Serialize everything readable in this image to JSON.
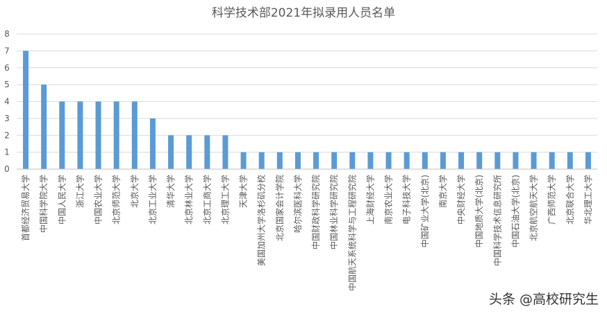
{
  "chart_data": {
    "type": "bar",
    "title": "科学技术部2021年拟录用人员名单",
    "xlabel": "",
    "ylabel": "",
    "ylim": [
      0,
      8
    ],
    "yticks": [
      0,
      1,
      2,
      3,
      4,
      5,
      6,
      7,
      8
    ],
    "grid": true,
    "legend": "none",
    "bar_color": "#5b9bd5",
    "categories": [
      "首都经济贸易大学",
      "中国科学院大学",
      "中国人民大学",
      "浙江大学",
      "中国农业大学",
      "北京师范大学",
      "北京大学",
      "北京工业大学",
      "清华大学",
      "北京林业大学",
      "北京工商大学",
      "北京理工大学",
      "天津大学",
      "美国加州大学洛杉矶分校",
      "北京国家会计学院",
      "哈尔滨医科大学",
      "中国财政科学研究院",
      "中国林业科学研究院",
      "中国航天系统科学与工程研究院",
      "上海财经大学",
      "南京农业大学",
      "电子科技大学",
      "中国矿业大学(北京)",
      "南京大学",
      "中央财经大学",
      "中国地质大学(北京)",
      "中国科学技术信息研究所",
      "中国石油大学(北京)",
      "北京航空航天大学",
      "广西师范大学",
      "北京联合大学",
      "华北理工大学"
    ],
    "values": [
      7,
      5,
      4,
      4,
      4,
      4,
      4,
      3,
      2,
      2,
      2,
      2,
      1,
      1,
      1,
      1,
      1,
      1,
      1,
      1,
      1,
      1,
      1,
      1,
      1,
      1,
      1,
      1,
      1,
      1,
      1,
      1
    ]
  },
  "watermark": "头条 @高校研究生"
}
